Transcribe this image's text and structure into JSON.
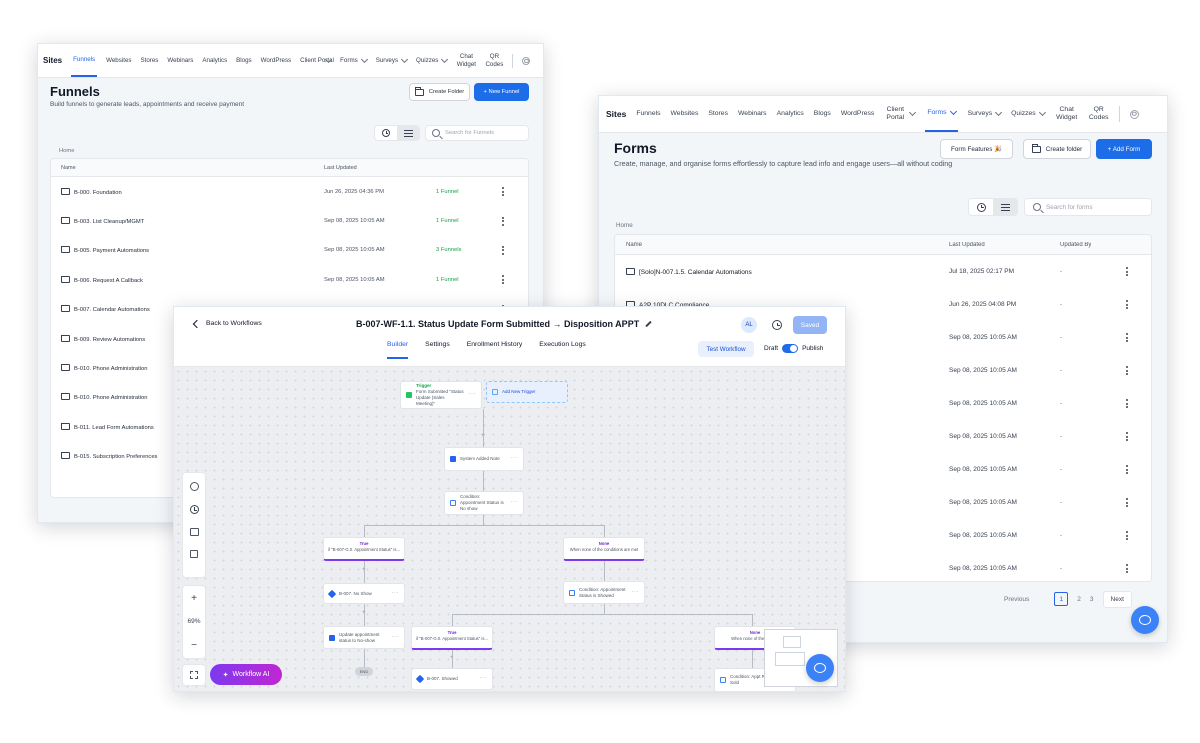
{
  "funnels_window": {
    "nav": {
      "brand": "Sites",
      "items": [
        {
          "label": "Funnels",
          "active": true
        },
        {
          "label": "Websites"
        },
        {
          "label": "Stores"
        },
        {
          "label": "Webinars"
        },
        {
          "label": "Analytics"
        },
        {
          "label": "Blogs"
        },
        {
          "label": "WordPress"
        },
        {
          "label": "Client Portal",
          "dropdown": true
        },
        {
          "label": "Forms",
          "dropdown": true
        },
        {
          "label": "Surveys",
          "dropdown": true
        },
        {
          "label": "Quizzes",
          "dropdown": true
        },
        {
          "label": "Chat Widget"
        },
        {
          "label": "QR Codes"
        }
      ]
    },
    "title": "Funnels",
    "subtitle": "Build funnels to generate leads, appointments and receive payment",
    "create_folder_label": "Create Folder",
    "new_funnel_label": "+  New Funnel",
    "search_placeholder": "Search for Funnels",
    "breadcrumb": "Home",
    "columns": {
      "name": "Name",
      "updated": "Last Updated"
    },
    "rows": [
      {
        "name": "B-000. Foundation",
        "updated": "Jun 26, 2025 04:36 PM",
        "count": "1 Funnel"
      },
      {
        "name": "B-003. List Cleanup/MGMT",
        "updated": "Sep 08, 2025 10:05 AM",
        "count": "1 Funnel"
      },
      {
        "name": "B-005. Payment Automations",
        "updated": "Sep 08, 2025 10:05 AM",
        "count": "3 Funnels"
      },
      {
        "name": "B-006. Request A Callback",
        "updated": "Sep 08, 2025 10:05 AM",
        "count": "1 Funnel"
      },
      {
        "name": "B-007. Calendar Automations",
        "updated": "Sep 08, 2025 10:05 AM",
        "count": "5 Funnels"
      },
      {
        "name": "B-009. Review Automations",
        "updated": "",
        "count": ""
      },
      {
        "name": "B-010. Phone Administration",
        "updated": "",
        "count": ""
      },
      {
        "name": "B-010. Phone Administration",
        "updated": "",
        "count": ""
      },
      {
        "name": "B-011. Lead Form Automations",
        "updated": "",
        "count": ""
      },
      {
        "name": "B-015. Subscription Preferences",
        "updated": "",
        "count": ""
      }
    ]
  },
  "forms_window": {
    "nav": {
      "brand": "Sites",
      "items": [
        {
          "label": "Funnels"
        },
        {
          "label": "Websites"
        },
        {
          "label": "Stores"
        },
        {
          "label": "Webinars"
        },
        {
          "label": "Analytics"
        },
        {
          "label": "Blogs"
        },
        {
          "label": "WordPress"
        },
        {
          "label": "Client Portal",
          "dropdown": true
        },
        {
          "label": "Forms",
          "dropdown": true,
          "active": true
        },
        {
          "label": "Surveys",
          "dropdown": true
        },
        {
          "label": "Quizzes",
          "dropdown": true
        },
        {
          "label": "Chat Widget"
        },
        {
          "label": "QR Codes"
        }
      ]
    },
    "title": "Forms",
    "subtitle": "Create, manage, and organise forms effortlessly to capture lead info and engage users—all without coding",
    "form_features_label": "Form Features 🎉",
    "create_folder_label": "Create folder",
    "add_form_label": "+  Add Form",
    "search_placeholder": "Search for forms",
    "breadcrumb": "Home",
    "columns": {
      "name": "Name",
      "updated": "Last Updated",
      "by": "Updated By"
    },
    "rows": [
      {
        "name": "[Solo]N-007.1.5. Calendar Automations",
        "updated": "Jul 18, 2025 02:17 PM",
        "by": "-"
      },
      {
        "name": "A2P 10DLC Compliance",
        "updated": "Jun 26, 2025 04:08 PM",
        "by": "-"
      },
      {
        "name": "",
        "updated": "Sep 08, 2025 10:05 AM",
        "by": "-"
      },
      {
        "name": "",
        "updated": "Sep 08, 2025 10:05 AM",
        "by": "-"
      },
      {
        "name": "",
        "updated": "Sep 08, 2025 10:05 AM",
        "by": "-"
      },
      {
        "name": "",
        "updated": "Sep 08, 2025 10:05 AM",
        "by": "-"
      },
      {
        "name": "",
        "updated": "Sep 08, 2025 10:05 AM",
        "by": "-"
      },
      {
        "name": "",
        "updated": "Sep 08, 2025 10:05 AM",
        "by": "-"
      },
      {
        "name": "",
        "updated": "Sep 08, 2025 10:05 AM",
        "by": "-"
      },
      {
        "name": "",
        "updated": "Sep 08, 2025 10:05 AM",
        "by": "-"
      }
    ],
    "pagination": {
      "previous": "Previous",
      "pages": [
        "1",
        "2",
        "3"
      ],
      "current": "1",
      "next": "Next"
    }
  },
  "workflow_window": {
    "back_label": "Back to Workflows",
    "title": "B-007-WF-1.1. Status Update Form Submitted → Disposition APPT",
    "avatar": "AL",
    "saved_label": "Saved",
    "tabs": [
      {
        "label": "Builder",
        "active": true
      },
      {
        "label": "Settings"
      },
      {
        "label": "Enrollment History"
      },
      {
        "label": "Execution Logs"
      }
    ],
    "test_workflow_label": "Test Workflow",
    "draft_label": "Draft",
    "publish_label": "Publish",
    "zoom": "69%",
    "workflow_ai_label": "Workflow AI",
    "nodes": {
      "trigger_tag": "Trigger",
      "trigger_text": "Form Submitted \"Status Update (Sales Meeting)\"",
      "add_trigger": "Add New Trigger",
      "internal_note": "System Added Note",
      "condition_1": "Condition: Appointment Status is No show",
      "branch_true_tag": "True",
      "branch_true_text": "if \"B-007-G.0. Appointment Status\" is...",
      "branch_none_tag": "None",
      "branch_none_text": "When none of the conditions are met",
      "tag_no_show": "B-007. No Show",
      "condition_2": "Condition: Appointment Status is Showed",
      "update_status": "Update appointment status to No-show",
      "end_label": "END",
      "branch_true2_text": "if \"B-007-G.0. Appointment Status\" is...",
      "branch_none2_text": "When none of the condi...",
      "tag_showed": "B-007. Showed",
      "condition_3": "Condition: Appt Result is Sold"
    }
  },
  "colors": {
    "primary": "#1d6ce8",
    "accent_purple": "#7c3aed",
    "funnel_count_green": "#16a34a"
  }
}
